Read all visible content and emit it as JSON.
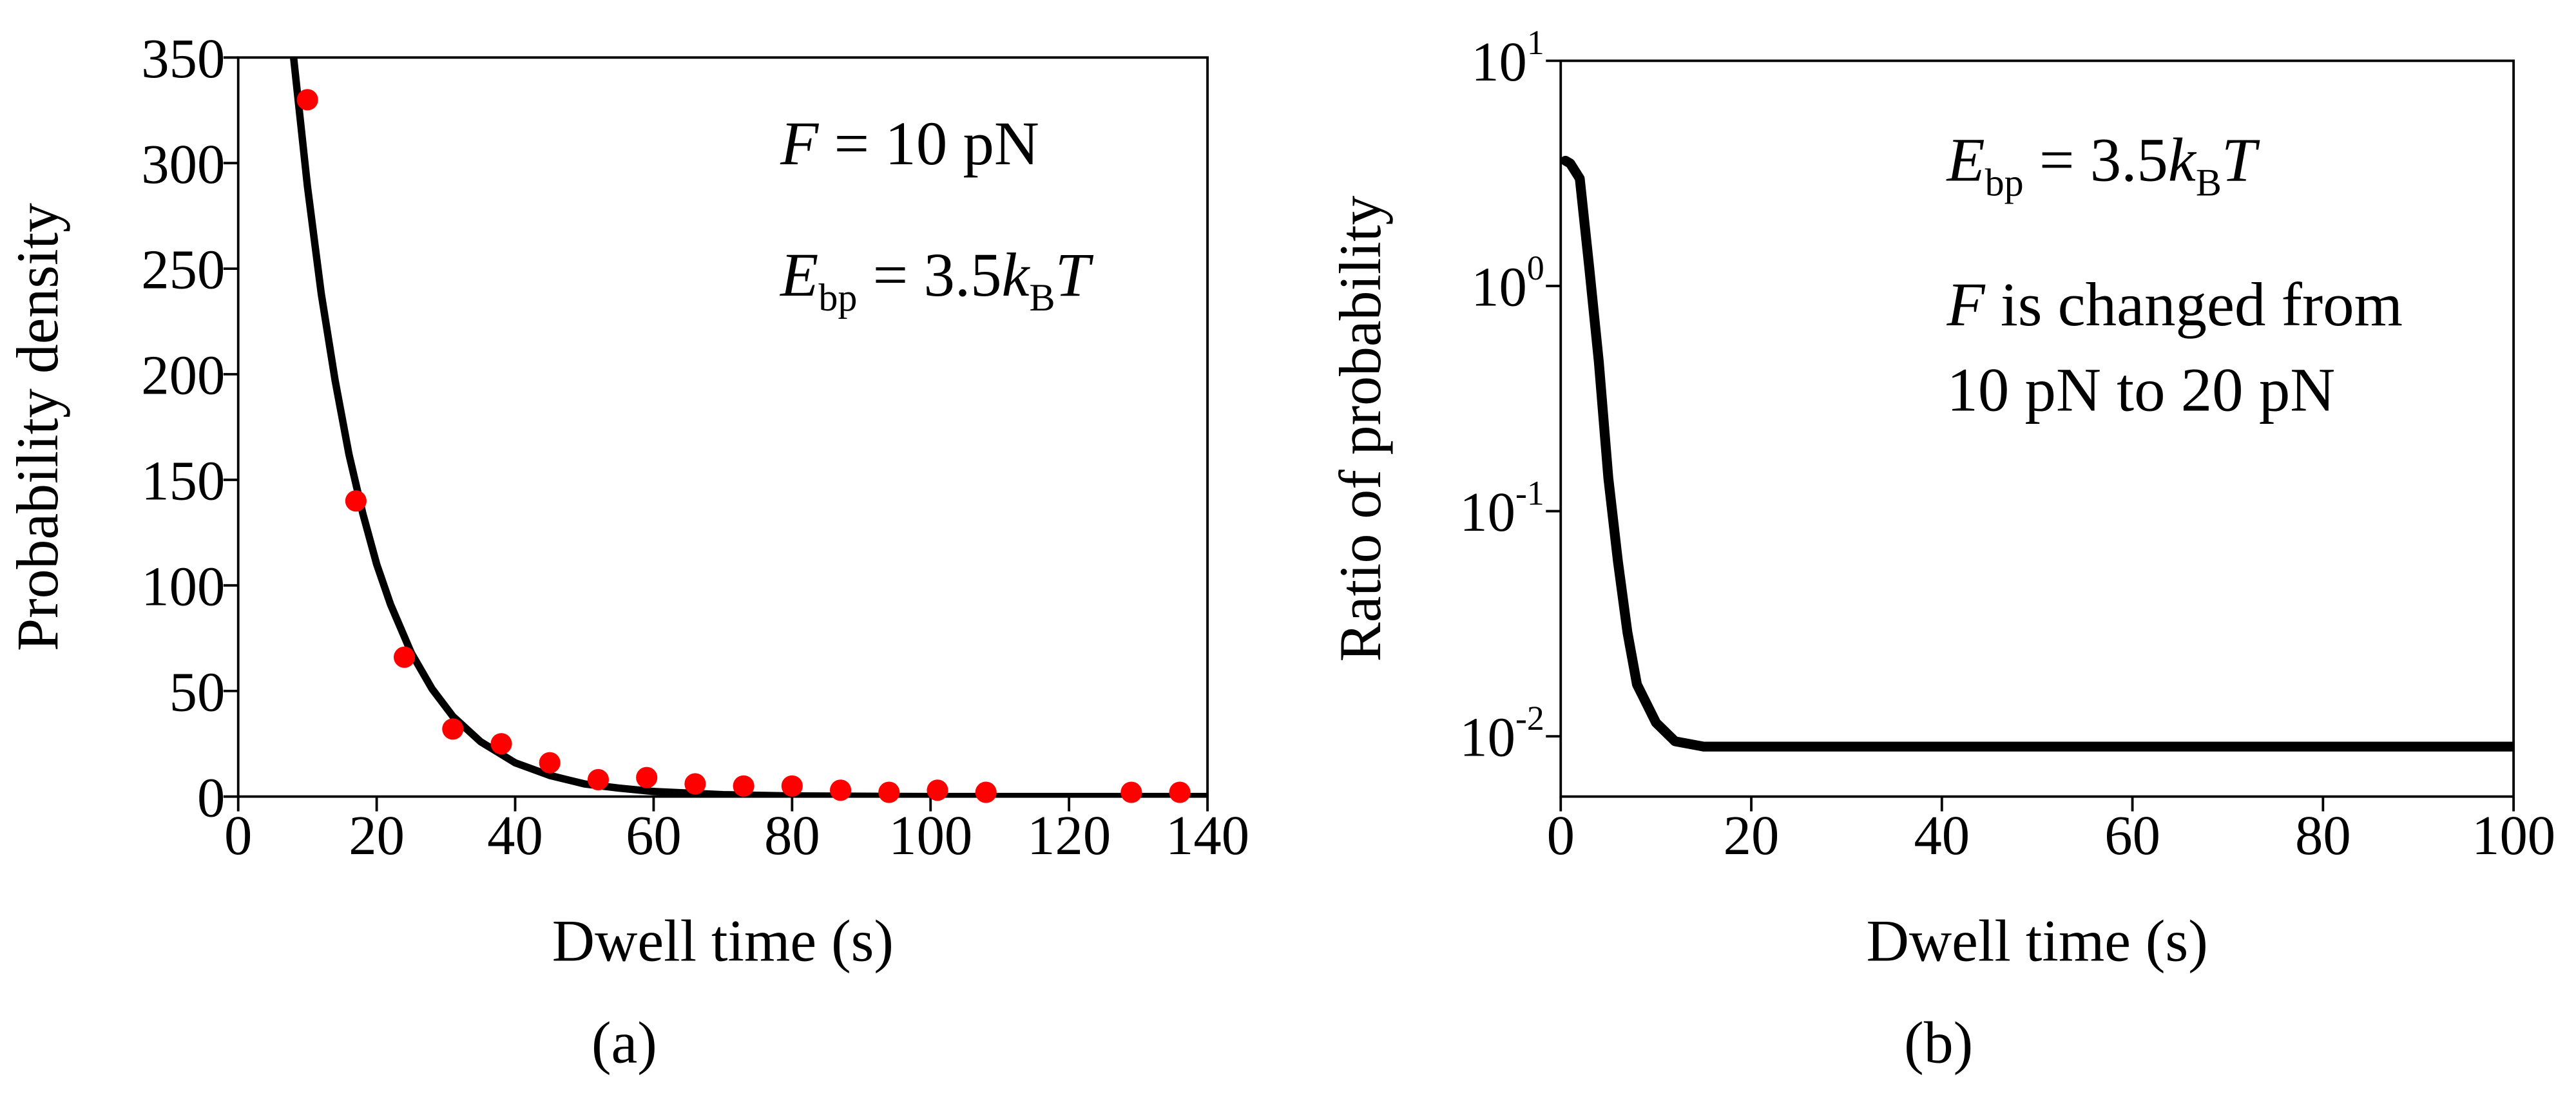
{
  "chart_data": [
    {
      "type": "scatter",
      "xlabel": "Dwell time (s)",
      "ylabel": "Probability density",
      "panel_label": "(a)",
      "xlim": [
        0,
        140
      ],
      "ylim": [
        0,
        350
      ],
      "xticks": [
        0,
        20,
        40,
        60,
        80,
        100,
        120,
        140
      ],
      "yticks": [
        0,
        50,
        100,
        150,
        200,
        250,
        300,
        350
      ],
      "points": {
        "color": "#ff0000",
        "x": [
          10,
          17,
          24,
          31,
          38,
          45,
          52,
          59,
          66,
          73,
          80,
          87,
          94,
          101,
          108,
          129,
          136
        ],
        "y": [
          330,
          140,
          66,
          32,
          25,
          16,
          8,
          9,
          6,
          5,
          5,
          3,
          2,
          3,
          2,
          2,
          2
        ]
      },
      "fit": {
        "color": "#000000",
        "x": [
          8,
          10,
          12,
          14,
          16,
          18,
          20,
          22,
          25,
          28,
          31,
          35,
          40,
          45,
          50,
          55,
          60,
          70,
          80,
          100,
          120,
          140
        ],
        "y": [
          350,
          289,
          238,
          197,
          162,
          134,
          110,
          91,
          68,
          51,
          38,
          26,
          16,
          10,
          6,
          4,
          2.4,
          0.9,
          0.3,
          0,
          0,
          0
        ]
      },
      "annotations": [
        {
          "runs": [
            {
              "text": "F",
              "style": "italic"
            },
            {
              "text": " = 10 pN"
            }
          ]
        },
        {
          "runs": [
            {
              "text": "E",
              "style": "italic"
            },
            {
              "text": "bp",
              "style": "sub"
            },
            {
              "text": " = 3.5"
            },
            {
              "text": "k",
              "style": "italic"
            },
            {
              "text": "B",
              "style": "sub"
            },
            {
              "text": "T",
              "style": "italic"
            }
          ]
        }
      ]
    },
    {
      "type": "line",
      "log_y": true,
      "xlabel": "Dwell time (s)",
      "ylabel": "Ratio of  probability",
      "panel_label": "(b)",
      "xlim": [
        0,
        100
      ],
      "ylim": [
        0.0054,
        10
      ],
      "xticks": [
        0,
        20,
        40,
        60,
        80,
        100
      ],
      "yticks": [
        {
          "value": 0.01,
          "label": "10",
          "exponent": "-2"
        },
        {
          "value": 0.1,
          "label": "10",
          "exponent": "-1"
        },
        {
          "value": 1,
          "label": "10",
          "exponent": "0"
        },
        {
          "value": 10,
          "label": "10",
          "exponent": "1"
        }
      ],
      "line": {
        "color": "#000000",
        "x": [
          0.5,
          1,
          2,
          3,
          4,
          5,
          6,
          7,
          8,
          10,
          12,
          15,
          20,
          40,
          60,
          80,
          100
        ],
        "y": [
          3.6,
          3.5,
          3.0,
          1.2,
          0.46,
          0.14,
          0.06,
          0.029,
          0.017,
          0.0115,
          0.0095,
          0.009,
          0.009,
          0.009,
          0.009,
          0.009,
          0.009
        ]
      },
      "annotations": [
        {
          "runs": [
            {
              "text": "E",
              "style": "italic"
            },
            {
              "text": "bp",
              "style": "sub"
            },
            {
              "text": " = 3.5"
            },
            {
              "text": "k",
              "style": "italic"
            },
            {
              "text": "B",
              "style": "sub"
            },
            {
              "text": "T",
              "style": "italic"
            }
          ]
        },
        {
          "runs": [
            {
              "text": "F",
              "style": "italic"
            },
            {
              "text": " is changed from"
            }
          ]
        },
        {
          "runs": [
            {
              "text": "10 pN to 20 pN"
            }
          ]
        }
      ]
    }
  ]
}
